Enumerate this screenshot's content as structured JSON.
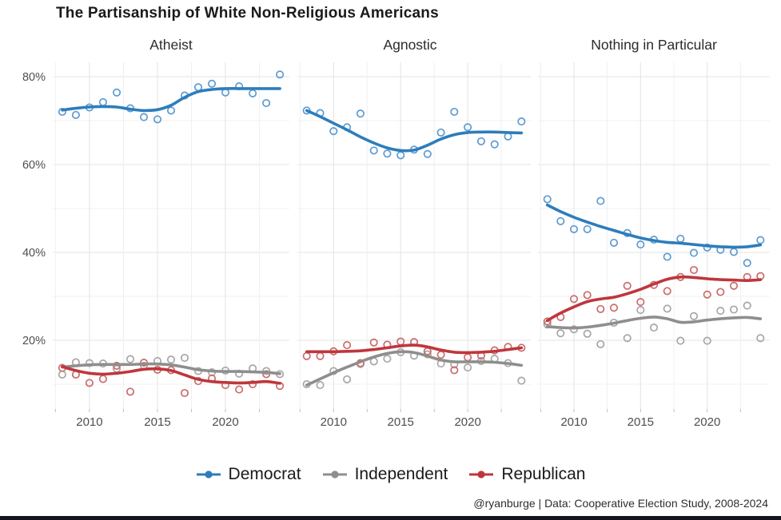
{
  "page": {
    "title": "The Partisanship of White Non-Religious Americans",
    "caption": "@ryanburge | Data: Cooperative Election Study, 2008-2024"
  },
  "chart_data": {
    "type": "scatter",
    "title": "The Partisanship of White Non-Religious Americans",
    "caption": "@ryanburge | Data: Cooperative Election Study, 2008-2024",
    "legend_position": "bottom",
    "grid": true,
    "x": [
      2008,
      2009,
      2010,
      2011,
      2012,
      2013,
      2014,
      2015,
      2016,
      2017,
      2018,
      2019,
      2020,
      2021,
      2022,
      2023,
      2024
    ],
    "xlim": [
      2007.3,
      2024.7
    ],
    "x_major_ticks": [
      2010,
      2015,
      2020
    ],
    "x_tick_labels": [
      "2010",
      "2015",
      "2020"
    ],
    "x_minor_ticks": [
      2007.5,
      2012.5,
      2017.5,
      2022.5
    ],
    "ylim": [
      4,
      83.5
    ],
    "ylabel": "",
    "xlabel": "",
    "y_major_ticks": [
      20,
      40,
      60,
      80
    ],
    "y_tick_labels": [
      "20%",
      "40%",
      "60%",
      "80%"
    ],
    "y_minor_ticks": [
      10,
      30,
      50,
      70
    ],
    "series_names": [
      "Democrat",
      "Independent",
      "Republican"
    ],
    "colors": {
      "Democrat": "#2d7dbb",
      "Independent": "#8e8e8e",
      "Republican": "#bf363c"
    },
    "dot_colors": {
      "Democrat": "#5d9bd3",
      "Independent": "#a6a6a6",
      "Republican": "#cc6b6b"
    },
    "facets": [
      {
        "label": "Atheist",
        "series": [
          {
            "name": "Democrat",
            "points": [
              72.0,
              71.3,
              73.0,
              74.2,
              76.4,
              72.8,
              70.8,
              70.3,
              72.3,
              75.7,
              77.6,
              78.4,
              76.4,
              77.8,
              76.2,
              74.0,
              80.5
            ],
            "trend": [
              72.4,
              72.8,
              73.1,
              73.2,
              73.1,
              72.6,
              72.3,
              72.5,
              73.5,
              75.3,
              76.6,
              77.1,
              77.3,
              77.3,
              77.3,
              77.3,
              77.3
            ]
          },
          {
            "name": "Independent",
            "points": [
              12.2,
              15.0,
              14.8,
              14.7,
              13.5,
              15.7,
              14.2,
              15.3,
              15.6,
              16.0,
              13.0,
              12.7,
              13.1,
              12.4,
              13.6,
              13.0,
              12.3
            ],
            "trend": [
              13.9,
              14.2,
              14.4,
              14.5,
              14.5,
              14.5,
              14.6,
              14.6,
              14.4,
              13.9,
              13.3,
              13.0,
              12.9,
              12.9,
              12.8,
              12.7,
              12.4
            ]
          },
          {
            "name": "Republican",
            "points": [
              13.7,
              12.2,
              10.3,
              11.2,
              14.2,
              8.3,
              14.9,
              13.3,
              13.2,
              8.0,
              10.7,
              11.3,
              9.8,
              8.8,
              10.0,
              12.3,
              9.6
            ],
            "trend": [
              14.0,
              13.1,
              12.5,
              12.3,
              12.5,
              12.9,
              13.4,
              13.5,
              13.1,
              12.1,
              11.1,
              10.6,
              10.4,
              10.3,
              10.4,
              10.6,
              10.2
            ]
          }
        ]
      },
      {
        "label": "Agnostic",
        "series": [
          {
            "name": "Democrat",
            "points": [
              72.3,
              71.7,
              67.6,
              68.5,
              71.6,
              63.2,
              62.5,
              62.1,
              63.4,
              62.4,
              67.3,
              72.0,
              68.5,
              65.3,
              64.6,
              66.4,
              69.8
            ],
            "trend": [
              72.3,
              70.9,
              69.4,
              67.9,
              66.3,
              64.9,
              63.8,
              63.2,
              63.3,
              64.4,
              65.8,
              66.8,
              67.3,
              67.4,
              67.4,
              67.3,
              67.2
            ]
          },
          {
            "name": "Independent",
            "points": [
              10.0,
              9.8,
              13.0,
              11.1,
              14.6,
              15.2,
              15.8,
              17.3,
              16.5,
              16.8,
              14.7,
              14.5,
              13.8,
              15.3,
              15.8,
              14.8,
              10.8
            ],
            "trend": [
              9.8,
              11.2,
              12.6,
              13.9,
              15.1,
              16.2,
              17.0,
              17.4,
              17.2,
              16.4,
              15.5,
              15.1,
              15.1,
              15.1,
              15.0,
              14.7,
              14.3
            ]
          },
          {
            "name": "Republican",
            "points": [
              16.4,
              16.4,
              17.5,
              18.9,
              14.8,
              19.5,
              19.0,
              19.7,
              19.6,
              17.5,
              16.7,
              13.2,
              16.1,
              16.5,
              17.7,
              18.5,
              18.3
            ],
            "trend": [
              17.4,
              17.4,
              17.4,
              17.5,
              17.6,
              17.9,
              18.3,
              18.7,
              18.9,
              18.5,
              17.8,
              17.3,
              17.2,
              17.3,
              17.5,
              17.9,
              18.3
            ]
          }
        ]
      },
      {
        "label": "Nothing in Particular",
        "series": [
          {
            "name": "Democrat",
            "points": [
              52.1,
              47.1,
              45.3,
              45.3,
              51.7,
              42.2,
              44.4,
              41.8,
              42.9,
              39.0,
              43.1,
              39.9,
              41.1,
              40.6,
              40.1,
              37.6,
              42.8
            ],
            "trend": [
              50.8,
              49.3,
              48.0,
              46.9,
              45.9,
              45.0,
              44.1,
              43.3,
              42.7,
              42.3,
              42.1,
              41.8,
              41.5,
              41.3,
              41.2,
              41.3,
              41.7
            ]
          },
          {
            "name": "Independent",
            "points": [
              23.6,
              21.6,
              22.5,
              21.5,
              19.1,
              24.0,
              20.5,
              26.9,
              22.9,
              27.2,
              19.9,
              25.5,
              19.9,
              26.7,
              27.0,
              27.9,
              20.5
            ],
            "trend": [
              23.1,
              22.9,
              22.8,
              23.0,
              23.4,
              23.9,
              24.5,
              25.0,
              25.3,
              24.9,
              24.1,
              24.2,
              24.6,
              24.9,
              25.1,
              25.2,
              24.9
            ]
          },
          {
            "name": "Republican",
            "points": [
              24.3,
              25.3,
              29.4,
              30.3,
              27.1,
              27.4,
              32.4,
              28.7,
              32.6,
              31.2,
              34.4,
              36.0,
              30.4,
              31.0,
              32.4,
              34.4,
              34.6
            ],
            "trend": [
              24.5,
              26.2,
              27.6,
              28.8,
              29.4,
              29.8,
              30.6,
              31.6,
              32.8,
              33.9,
              34.4,
              34.3,
              34.0,
              33.8,
              33.7,
              33.6,
              33.8
            ]
          }
        ]
      }
    ]
  }
}
